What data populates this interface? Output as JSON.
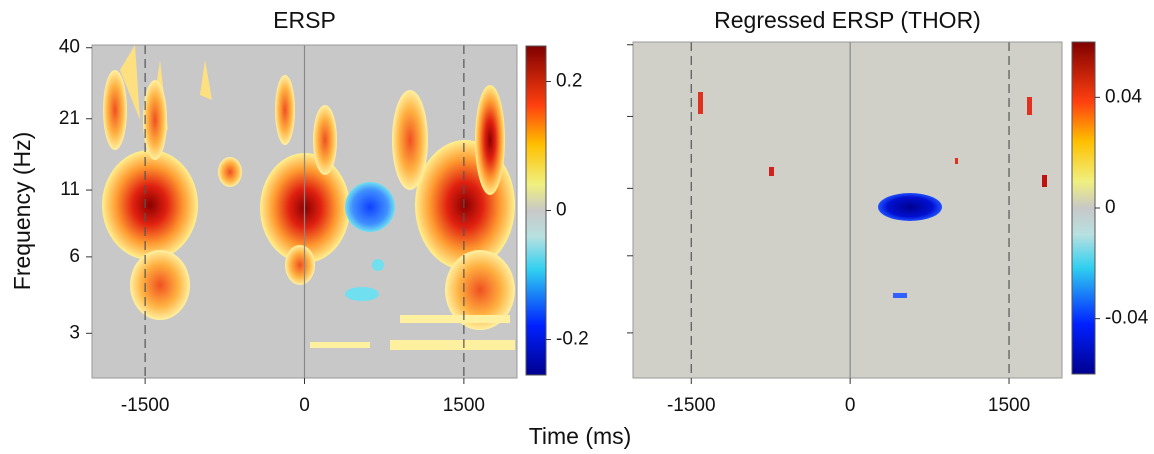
{
  "figure": {
    "xlabel": "Time (ms)",
    "ylabel": "Frequency (Hz)"
  },
  "chart_data": [
    {
      "type": "heatmap",
      "title": "ERSP",
      "xlim": [
        -2000,
        2000
      ],
      "xticks": [
        -1500,
        0,
        1500
      ],
      "ylim": [
        2,
        41
      ],
      "yscale": "log",
      "yticks": [
        3,
        6,
        11,
        21,
        40
      ],
      "clim": [
        -0.255,
        0.255
      ],
      "cticks": [
        0.2,
        0,
        -0.2
      ],
      "vlines": [
        {
          "value": -1500,
          "dashed": true
        },
        {
          "value": 0,
          "dashed": false
        },
        {
          "value": 1500,
          "dashed": true
        }
      ],
      "background": "#c8c8c8"
    },
    {
      "type": "heatmap",
      "title": "Regressed ERSP (THOR)",
      "xlim": [
        -2050,
        2000
      ],
      "xticks": [
        -1500,
        0,
        1500
      ],
      "ylim": [
        2,
        41
      ],
      "yscale": "log",
      "yticks": [
        3,
        6,
        11,
        21,
        40
      ],
      "ytick_labels": false,
      "clim": [
        -0.06,
        0.06
      ],
      "cticks": [
        0.04,
        0,
        -0.04
      ],
      "vlines": [
        {
          "value": -1500,
          "dashed": true
        },
        {
          "value": 0,
          "dashed": false
        },
        {
          "value": 1500,
          "dashed": true
        }
      ],
      "background": "#d0d0c8"
    }
  ]
}
